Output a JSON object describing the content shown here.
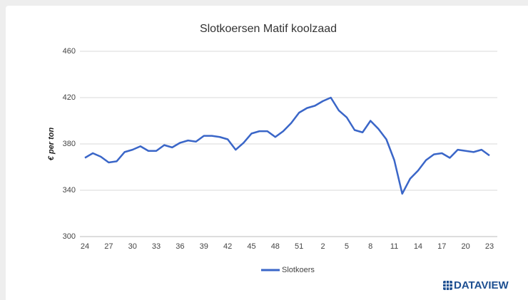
{
  "chart_data": {
    "type": "line",
    "title": "Slotkoersen Matif koolzaad",
    "y_label": "€ per ton",
    "categories": [
      "24",
      null,
      null,
      "27",
      null,
      null,
      "30",
      null,
      null,
      "33",
      null,
      null,
      "36",
      null,
      null,
      "39",
      null,
      null,
      "42",
      null,
      null,
      "45",
      null,
      null,
      "48",
      null,
      null,
      "51",
      null,
      null,
      "2",
      null,
      null,
      "5",
      null,
      null,
      "8",
      null,
      null,
      "11",
      null,
      null,
      "14",
      null,
      null,
      "17",
      null,
      null,
      "20",
      null,
      null,
      "23"
    ],
    "series": [
      {
        "name": "Slotkoers",
        "color": "#3a66c8",
        "values": [
          368,
          372,
          369,
          364,
          365,
          373,
          375,
          378,
          374,
          374,
          379,
          377,
          381,
          383,
          382,
          387,
          387,
          386,
          384,
          375,
          381,
          389,
          391,
          391,
          386,
          391,
          398,
          407,
          411,
          413,
          417,
          420,
          409,
          403,
          392,
          390,
          400,
          393,
          384,
          366,
          337,
          350,
          357,
          366,
          371,
          372,
          368,
          375,
          374,
          373,
          375,
          370
        ]
      }
    ],
    "ylim": [
      300,
      460
    ],
    "yticks": [
      300,
      340,
      380,
      420,
      460
    ],
    "grid": true,
    "legend": "bottom",
    "brand": "DATAVIEW"
  }
}
